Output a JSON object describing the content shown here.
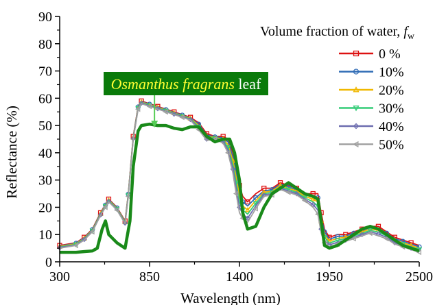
{
  "chart_data": {
    "type": "line",
    "title": "",
    "xlabel": "Wavelength (nm)",
    "ylabel": "Reflectance (%)",
    "xlim": [
      300,
      2500
    ],
    "ylim": [
      0,
      90
    ],
    "xticks": [
      300,
      850,
      1400,
      1950,
      2500
    ],
    "yticks": [
      0,
      10,
      20,
      30,
      40,
      50,
      60,
      70,
      80,
      90
    ],
    "grid": false,
    "legend": {
      "title_prefix": "Volume fraction of water, ",
      "title_symbol": "f",
      "title_subscript": "w",
      "placement": "top-right"
    },
    "annotation": {
      "species": "Osmanthus fragrans",
      "suffix": " leaf",
      "box_color": "#0a7a0a",
      "species_color": "#ffff33",
      "suffix_color": "#ffffff",
      "arrow_color": "#55cc55",
      "target": [
        880,
        49
      ]
    },
    "series": [
      {
        "name": "0 %",
        "color": "#dd1111",
        "marker": "square",
        "x": [
          300,
          400,
          450,
          500,
          550,
          580,
          600,
          650,
          700,
          720,
          750,
          780,
          800,
          850,
          900,
          950,
          1000,
          1050,
          1100,
          1150,
          1200,
          1250,
          1300,
          1330,
          1360,
          1380,
          1400,
          1420,
          1450,
          1500,
          1550,
          1600,
          1650,
          1700,
          1750,
          1800,
          1850,
          1880,
          1900,
          1920,
          1950,
          2000,
          2050,
          2100,
          2150,
          2200,
          2250,
          2300,
          2350,
          2400,
          2450,
          2500
        ],
        "y": [
          6,
          7,
          9,
          12,
          18,
          21,
          23,
          20,
          15,
          25,
          46,
          57,
          59,
          58,
          57,
          56,
          55,
          54,
          53,
          51,
          47,
          46,
          46,
          45,
          40,
          35,
          28,
          24,
          22,
          25,
          27,
          27,
          29,
          28,
          27,
          25,
          25,
          25,
          18,
          12,
          9,
          10,
          10,
          11,
          12,
          13,
          13,
          11,
          9,
          8,
          7,
          6
        ]
      },
      {
        "name": "10%",
        "color": "#2f6bb5",
        "marker": "circle",
        "x": [
          300,
          400,
          450,
          500,
          550,
          580,
          600,
          650,
          700,
          720,
          750,
          780,
          800,
          850,
          900,
          950,
          1000,
          1050,
          1100,
          1150,
          1200,
          1250,
          1300,
          1330,
          1360,
          1380,
          1400,
          1420,
          1450,
          1500,
          1550,
          1600,
          1650,
          1700,
          1750,
          1800,
          1850,
          1880,
          1900,
          1920,
          1950,
          2000,
          2050,
          2100,
          2150,
          2200,
          2250,
          2300,
          2350,
          2400,
          2450,
          2500
        ],
        "y": [
          5.8,
          6.8,
          8.8,
          11.8,
          17.8,
          20.8,
          22.8,
          19.8,
          14.8,
          24.8,
          45.8,
          56.8,
          58.8,
          57.8,
          56.8,
          55.8,
          54.8,
          53.8,
          52.8,
          50.5,
          46.5,
          45.8,
          45.5,
          44,
          38.5,
          33,
          26,
          22,
          20.5,
          23.5,
          26,
          26.5,
          28.5,
          27.5,
          26.5,
          24.5,
          24,
          23.5,
          16.5,
          11,
          8.3,
          9.3,
          9.5,
          10.5,
          11.5,
          12.5,
          12.3,
          10.5,
          8.5,
          7.5,
          6.5,
          5.5
        ]
      },
      {
        "name": "20%",
        "color": "#f0b800",
        "marker": "triangle-up",
        "x": [
          300,
          400,
          450,
          500,
          550,
          580,
          600,
          650,
          700,
          720,
          750,
          780,
          800,
          850,
          900,
          950,
          1000,
          1050,
          1100,
          1150,
          1200,
          1250,
          1300,
          1330,
          1360,
          1380,
          1400,
          1420,
          1450,
          1500,
          1550,
          1600,
          1650,
          1700,
          1750,
          1800,
          1850,
          1880,
          1900,
          1920,
          1950,
          2000,
          2050,
          2100,
          2150,
          2200,
          2250,
          2300,
          2350,
          2400,
          2450,
          2500
        ],
        "y": [
          5.6,
          6.6,
          8.6,
          11.6,
          17.6,
          20.6,
          22.6,
          19.6,
          14.6,
          24.6,
          45.6,
          56.6,
          58.6,
          57.6,
          56.6,
          55.6,
          54.6,
          53.6,
          52.6,
          50,
          46,
          45.6,
          45,
          43,
          37,
          31,
          24,
          20.5,
          19,
          22.5,
          25.5,
          26,
          28,
          27,
          26,
          24,
          23,
          22,
          15,
          10,
          7.6,
          8.6,
          9,
          10,
          11,
          12,
          11.6,
          10,
          8,
          7,
          6,
          5
        ]
      },
      {
        "name": "30%",
        "color": "#33cc77",
        "marker": "triangle-down",
        "x": [
          300,
          400,
          450,
          500,
          550,
          580,
          600,
          650,
          700,
          720,
          750,
          780,
          800,
          850,
          900,
          950,
          1000,
          1050,
          1100,
          1150,
          1200,
          1250,
          1300,
          1330,
          1360,
          1380,
          1400,
          1420,
          1450,
          1500,
          1550,
          1600,
          1650,
          1700,
          1750,
          1800,
          1850,
          1880,
          1900,
          1920,
          1950,
          2000,
          2050,
          2100,
          2150,
          2200,
          2250,
          2300,
          2350,
          2400,
          2450,
          2500
        ],
        "y": [
          5.4,
          6.4,
          8.4,
          11.4,
          17.4,
          20.4,
          22.4,
          19.4,
          14.4,
          24.4,
          45.4,
          56.4,
          58.4,
          57.4,
          56.4,
          55.4,
          54.4,
          53.4,
          52.4,
          49.5,
          45.5,
          45.4,
          44.5,
          42,
          35.5,
          29,
          22,
          19,
          17.5,
          21.5,
          25,
          25.5,
          27.5,
          26.5,
          25.5,
          23.5,
          22,
          20.5,
          13.5,
          9,
          6.9,
          7.9,
          8.5,
          9.5,
          10.5,
          11.5,
          10.9,
          9.5,
          7.5,
          6.5,
          5.5,
          4.5
        ]
      },
      {
        "name": "40%",
        "color": "#6e6eb0",
        "marker": "diamond",
        "x": [
          300,
          400,
          450,
          500,
          550,
          580,
          600,
          650,
          700,
          720,
          750,
          780,
          800,
          850,
          900,
          950,
          1000,
          1050,
          1100,
          1150,
          1200,
          1250,
          1300,
          1330,
          1360,
          1380,
          1400,
          1420,
          1450,
          1500,
          1550,
          1600,
          1650,
          1700,
          1750,
          1800,
          1850,
          1880,
          1900,
          1920,
          1950,
          2000,
          2050,
          2100,
          2150,
          2200,
          2250,
          2300,
          2350,
          2400,
          2450,
          2500
        ],
        "y": [
          5.2,
          6.2,
          8.2,
          11.2,
          17.2,
          20.2,
          22.2,
          19.2,
          14.2,
          24.2,
          45.2,
          56.2,
          58.2,
          57.2,
          56.2,
          55.2,
          54.2,
          53.2,
          52.2,
          49,
          45,
          45.2,
          44,
          41,
          34,
          27,
          20,
          17.5,
          16,
          20.5,
          24.5,
          25,
          27,
          26,
          25,
          23,
          21,
          19,
          12,
          8,
          6.2,
          7.2,
          8,
          9,
          10,
          11,
          10.2,
          9,
          7,
          6,
          5,
          4
        ]
      },
      {
        "name": "50%",
        "color": "#a0a0a0",
        "marker": "triangle-left",
        "x": [
          300,
          400,
          450,
          500,
          550,
          580,
          600,
          650,
          700,
          720,
          750,
          780,
          800,
          850,
          900,
          950,
          1000,
          1050,
          1100,
          1150,
          1200,
          1250,
          1300,
          1330,
          1360,
          1380,
          1400,
          1420,
          1450,
          1500,
          1550,
          1600,
          1650,
          1700,
          1750,
          1800,
          1850,
          1880,
          1900,
          1920,
          1950,
          2000,
          2050,
          2100,
          2150,
          2200,
          2250,
          2300,
          2350,
          2400,
          2450,
          2500
        ],
        "y": [
          5,
          6,
          8,
          11,
          17,
          20,
          22,
          19,
          14,
          24,
          45,
          56,
          58,
          57,
          56,
          55,
          54,
          53,
          52,
          48.5,
          44.5,
          45,
          43.5,
          40,
          32.5,
          25,
          18,
          16,
          14.5,
          19.5,
          24,
          24.5,
          26.5,
          25.5,
          24.5,
          22.5,
          20,
          17.5,
          10.5,
          7,
          5.5,
          6.5,
          7.5,
          8.5,
          9.5,
          10.5,
          9.5,
          8.5,
          6.5,
          5.5,
          4.5,
          3.5
        ]
      },
      {
        "name": "",
        "color": "#1a8a1a",
        "marker": "none",
        "x": [
          300,
          400,
          500,
          530,
          560,
          580,
          600,
          650,
          700,
          730,
          750,
          780,
          800,
          850,
          900,
          950,
          1000,
          1050,
          1100,
          1150,
          1200,
          1250,
          1300,
          1340,
          1370,
          1400,
          1420,
          1450,
          1500,
          1550,
          1600,
          1650,
          1700,
          1750,
          1800,
          1850,
          1880,
          1900,
          1920,
          1950,
          2000,
          2050,
          2100,
          2150,
          2200,
          2250,
          2300,
          2350,
          2400,
          2450,
          2500
        ],
        "y": [
          3.5,
          3.5,
          4,
          5,
          12,
          15,
          10,
          7,
          5,
          15,
          35,
          48,
          50,
          50.5,
          50,
          50,
          49,
          48.5,
          49.5,
          49.5,
          46,
          44,
          45,
          45,
          40,
          30,
          18,
          12,
          13,
          20,
          25,
          27,
          29,
          27,
          25,
          24,
          23,
          15,
          6,
          5,
          6,
          8,
          10,
          12,
          13,
          12,
          10,
          8,
          6,
          5,
          4
        ]
      }
    ]
  }
}
